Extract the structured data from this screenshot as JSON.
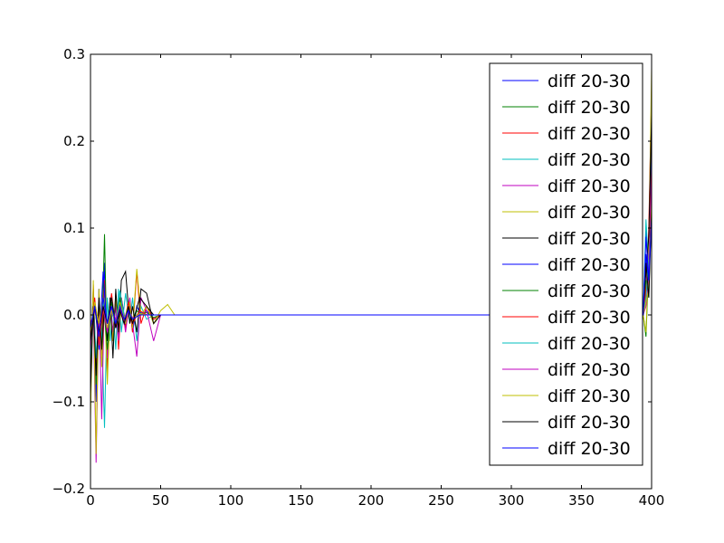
{
  "chart_data": {
    "type": "line",
    "title": "",
    "xlabel": "",
    "ylabel": "",
    "xlim": [
      0,
      400
    ],
    "ylim": [
      -0.2,
      0.3
    ],
    "x_ticks": [
      0,
      50,
      100,
      150,
      200,
      250,
      300,
      350,
      400
    ],
    "x_tick_labels": [
      "0",
      "50",
      "100",
      "150",
      "200",
      "250",
      "300",
      "350",
      "400"
    ],
    "y_ticks": [
      -0.2,
      -0.1,
      0.0,
      0.1,
      0.2,
      0.3
    ],
    "y_tick_labels": [
      "−0.2",
      "−0.1",
      "0.0",
      "0.1",
      "0.2",
      "0.3"
    ],
    "grid": false,
    "legend_position": "top-right",
    "series": [
      {
        "name": "diff 20-30",
        "color": "#0000ff",
        "x": [
          0,
          2,
          4,
          6,
          8,
          10,
          12,
          14,
          16,
          18,
          20,
          22,
          25,
          28,
          30,
          33,
          36,
          40,
          45,
          50,
          55,
          60,
          200,
          300,
          394,
          396,
          398,
          400
        ],
        "y": [
          -0.08,
          0.02,
          -0.1,
          0.03,
          -0.04,
          0.06,
          -0.05,
          0.02,
          -0.02,
          0.01,
          -0.03,
          0.02,
          -0.01,
          0.01,
          -0.02,
          0.01,
          0.0,
          0.005,
          -0.005,
          0.0,
          0.0,
          0.0,
          0.0,
          0.0,
          0.0,
          0.1,
          0.04,
          0.22
        ]
      },
      {
        "name": "diff 20-30",
        "color": "#008000",
        "x": [
          0,
          2,
          4,
          6,
          8,
          10,
          12,
          14,
          16,
          18,
          20,
          22,
          25,
          28,
          30,
          33,
          36,
          40,
          45,
          50,
          55,
          60,
          200,
          300,
          394,
          396,
          398,
          400
        ],
        "y": [
          -0.05,
          0.03,
          -0.08,
          0.02,
          -0.03,
          0.093,
          -0.06,
          0.01,
          -0.02,
          0.015,
          -0.025,
          0.01,
          -0.01,
          0.005,
          -0.01,
          0.005,
          0.0,
          0.003,
          -0.003,
          0.0,
          0.0,
          0.0,
          0.0,
          0.0,
          0.0,
          -0.025,
          0.06,
          0.2
        ]
      },
      {
        "name": "diff 20-30",
        "color": "#ff0000",
        "x": [
          0,
          2,
          4,
          6,
          8,
          10,
          12,
          14,
          16,
          18,
          20,
          22,
          25,
          28,
          30,
          33,
          36,
          40,
          45,
          50,
          55,
          60,
          200,
          300,
          394,
          396,
          398,
          400
        ],
        "y": [
          -0.1,
          0.035,
          -0.06,
          0.015,
          -0.05,
          0.04,
          -0.07,
          0.01,
          -0.03,
          0.025,
          -0.04,
          0.02,
          -0.015,
          0.01,
          -0.02,
          0.05,
          -0.01,
          0.01,
          -0.005,
          0.0,
          0.0,
          0.0,
          0.0,
          0.0,
          0.0,
          0.02,
          0.1,
          0.26
        ]
      },
      {
        "name": "diff 20-30",
        "color": "#00bfbf",
        "x": [
          0,
          2,
          4,
          6,
          8,
          10,
          12,
          14,
          16,
          18,
          20,
          22,
          25,
          28,
          30,
          33,
          36,
          40,
          45,
          50,
          55,
          60,
          200,
          300,
          394,
          396,
          398,
          400
        ],
        "y": [
          -0.06,
          0.02,
          -0.05,
          0.01,
          -0.02,
          -0.13,
          0.02,
          -0.03,
          0.01,
          -0.04,
          0.03,
          -0.02,
          0.025,
          -0.01,
          0.02,
          -0.03,
          0.01,
          -0.005,
          0.0,
          0.0,
          0.0,
          0.0,
          0.0,
          0.0,
          0.0,
          0.11,
          0.05,
          0.19
        ]
      },
      {
        "name": "diff 20-30",
        "color": "#bf00bf",
        "x": [
          0,
          2,
          4,
          6,
          8,
          10,
          12,
          14,
          16,
          18,
          20,
          22,
          25,
          28,
          30,
          33,
          36,
          40,
          45,
          50,
          55,
          60,
          200,
          300,
          394,
          396,
          398,
          400
        ],
        "y": [
          -0.04,
          0.01,
          -0.17,
          0.02,
          -0.12,
          0.03,
          -0.05,
          0.015,
          -0.02,
          0.01,
          -0.03,
          0.015,
          -0.02,
          0.02,
          -0.01,
          -0.048,
          0.02,
          0.005,
          -0.03,
          0.0,
          0.0,
          0.0,
          0.0,
          0.0,
          0.0,
          0.03,
          0.08,
          0.24
        ]
      },
      {
        "name": "diff 20-30",
        "color": "#bfbf00",
        "x": [
          0,
          2,
          4,
          6,
          8,
          10,
          12,
          14,
          16,
          18,
          20,
          22,
          25,
          28,
          30,
          33,
          36,
          40,
          45,
          50,
          55,
          60,
          200,
          300,
          394,
          396,
          398,
          400
        ],
        "y": [
          -0.12,
          0.04,
          -0.16,
          0.03,
          -0.06,
          0.02,
          -0.08,
          0.01,
          -0.03,
          0.02,
          -0.02,
          0.01,
          -0.01,
          0.015,
          -0.015,
          0.053,
          0.0,
          0.01,
          -0.01,
          0.005,
          0.012,
          0.0,
          0.0,
          0.0,
          0.0,
          -0.02,
          0.07,
          0.285
        ]
      },
      {
        "name": "diff 20-30",
        "color": "#000000",
        "x": [
          0,
          2,
          4,
          6,
          8,
          10,
          12,
          14,
          16,
          18,
          20,
          22,
          25,
          28,
          30,
          33,
          36,
          40,
          45,
          50,
          55,
          60,
          200,
          300,
          394,
          396,
          398,
          400
        ],
        "y": [
          -0.09,
          0.01,
          -0.07,
          0.02,
          -0.04,
          0.01,
          -0.03,
          0.02,
          -0.05,
          0.03,
          -0.02,
          0.04,
          0.05,
          -0.01,
          0.01,
          -0.02,
          0.03,
          0.025,
          -0.01,
          0.0,
          0.0,
          0.0,
          0.0,
          0.0,
          0.0,
          0.05,
          0.09,
          0.23
        ]
      },
      {
        "name": "diff 20-30",
        "color": "#0000ff",
        "x": [
          0,
          3,
          6,
          9,
          12,
          15,
          18,
          21,
          24,
          27,
          30,
          35,
          40,
          45,
          50,
          60,
          200,
          300,
          394,
          396,
          398,
          400
        ],
        "y": [
          -0.03,
          0.015,
          -0.04,
          0.05,
          -0.02,
          0.01,
          -0.015,
          0.01,
          -0.01,
          0.005,
          -0.005,
          0.003,
          0.0,
          0.0,
          0.0,
          0.0,
          0.0,
          0.0,
          0.0,
          0.07,
          0.03,
          0.18
        ]
      },
      {
        "name": "diff 20-30",
        "color": "#008000",
        "x": [
          0,
          3,
          6,
          9,
          12,
          15,
          18,
          21,
          24,
          27,
          30,
          35,
          40,
          45,
          50,
          60,
          200,
          300,
          394,
          396,
          398,
          400
        ],
        "y": [
          -0.02,
          0.01,
          -0.03,
          0.02,
          -0.04,
          0.015,
          -0.01,
          0.02,
          -0.005,
          0.01,
          -0.005,
          0.002,
          0.0,
          0.0,
          0.0,
          0.0,
          0.0,
          0.0,
          0.0,
          0.04,
          0.02,
          0.15
        ]
      },
      {
        "name": "diff 20-30",
        "color": "#ff0000",
        "x": [
          0,
          3,
          6,
          9,
          12,
          15,
          18,
          21,
          24,
          27,
          30,
          35,
          40,
          45,
          50,
          60,
          200,
          300,
          394,
          396,
          398,
          400
        ],
        "y": [
          -0.025,
          0.02,
          -0.035,
          0.01,
          -0.02,
          0.025,
          -0.015,
          0.01,
          -0.01,
          0.015,
          -0.01,
          0.005,
          0.0,
          0.0,
          0.0,
          0.0,
          0.0,
          0.0,
          0.0,
          0.03,
          0.05,
          0.17
        ]
      },
      {
        "name": "diff 20-30",
        "color": "#00bfbf",
        "x": [
          0,
          3,
          6,
          9,
          12,
          15,
          18,
          21,
          24,
          27,
          30,
          35,
          40,
          45,
          50,
          60,
          200,
          300,
          394,
          396,
          398,
          400
        ],
        "y": [
          -0.015,
          0.01,
          -0.02,
          0.015,
          -0.01,
          0.02,
          -0.01,
          0.028,
          -0.005,
          0.01,
          -0.005,
          0.0,
          0.0,
          0.0,
          0.0,
          0.0,
          0.0,
          0.0,
          0.0,
          0.02,
          0.06,
          0.14
        ]
      },
      {
        "name": "diff 20-30",
        "color": "#bf00bf",
        "x": [
          0,
          3,
          6,
          9,
          12,
          15,
          18,
          21,
          24,
          27,
          30,
          35,
          40,
          45,
          50,
          60,
          200,
          300,
          394,
          396,
          398,
          400
        ],
        "y": [
          -0.01,
          0.005,
          -0.015,
          0.01,
          -0.02,
          0.01,
          -0.005,
          0.01,
          -0.01,
          0.005,
          -0.003,
          0.0,
          0.0,
          0.0,
          0.0,
          0.0,
          0.0,
          0.0,
          0.0,
          0.01,
          0.04,
          0.16
        ]
      },
      {
        "name": "diff 20-30",
        "color": "#bfbf00",
        "x": [
          0,
          3,
          6,
          9,
          12,
          15,
          18,
          21,
          24,
          27,
          30,
          35,
          40,
          45,
          50,
          60,
          200,
          300,
          394,
          396,
          398,
          400
        ],
        "y": [
          -0.02,
          0.015,
          -0.01,
          0.02,
          -0.015,
          0.005,
          -0.01,
          0.015,
          -0.005,
          0.01,
          -0.005,
          0.002,
          0.0,
          0.0,
          0.0,
          0.0,
          0.0,
          0.0,
          0.0,
          0.015,
          0.03,
          0.13
        ]
      },
      {
        "name": "diff 20-30",
        "color": "#000000",
        "x": [
          0,
          3,
          6,
          9,
          12,
          15,
          18,
          21,
          24,
          27,
          30,
          35,
          40,
          45,
          50,
          60,
          200,
          300,
          394,
          396,
          398,
          400
        ],
        "y": [
          -0.03,
          0.01,
          -0.02,
          0.01,
          -0.01,
          0.02,
          -0.015,
          0.005,
          -0.01,
          0.01,
          -0.01,
          0.02,
          0.01,
          0.0,
          0.0,
          0.0,
          0.0,
          0.0,
          0.0,
          0.06,
          0.02,
          0.12
        ]
      },
      {
        "name": "diff 20-30",
        "color": "#0000ff",
        "x": [
          0,
          3,
          6,
          9,
          12,
          15,
          18,
          21,
          24,
          27,
          30,
          35,
          40,
          45,
          50,
          60,
          200,
          300,
          394,
          396,
          398,
          400
        ],
        "y": [
          -0.015,
          0.01,
          -0.025,
          0.02,
          -0.01,
          0.01,
          -0.01,
          0.01,
          -0.005,
          0.005,
          -0.005,
          0.0,
          0.0,
          0.0,
          0.0,
          0.0,
          0.0,
          0.0,
          0.0,
          0.09,
          0.04,
          0.11
        ]
      }
    ]
  }
}
